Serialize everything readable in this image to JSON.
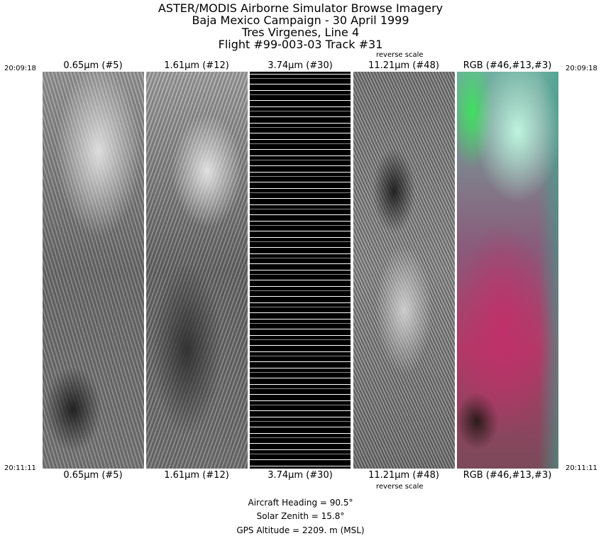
{
  "title_lines": [
    "ASTER/MODIS Airborne Simulator Browse Imagery",
    "Baja Mexico Campaign - 30 April 1999",
    "Tres Virgenes, Line  4",
    "Flight #99-003-03 Track #31"
  ],
  "start_time": "20:09:18",
  "end_time": "20:11:11",
  "panels": [
    {
      "label": "0.65μm (#5)",
      "note": ""
    },
    {
      "label": "1.61μm (#12)",
      "note": ""
    },
    {
      "label": "3.74μm (#30)",
      "note": ""
    },
    {
      "label": "11.21μm (#48)",
      "note": "reverse scale"
    },
    {
      "label": "RGB (#46,#13,#3)",
      "note": ""
    }
  ],
  "info": {
    "heading": "Aircraft Heading =    90.5°",
    "zenith": "Solar Zenith =    15.8°",
    "altitude": "GPS Altitude =    2209. m (MSL)"
  }
}
